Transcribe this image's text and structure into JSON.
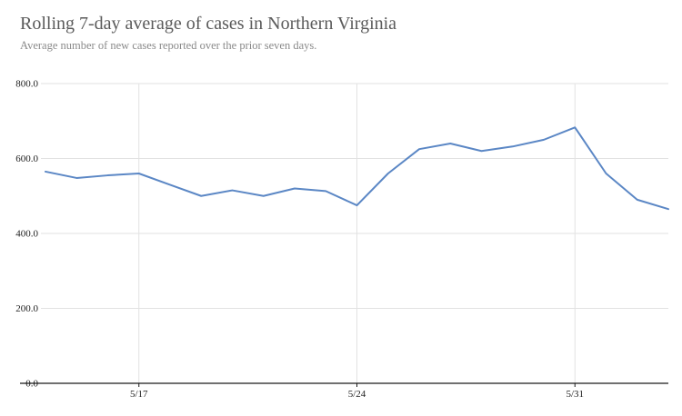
{
  "header": {
    "title": "Rolling 7-day average of cases in Northern Virginia",
    "subtitle": "Average number of new cases reported over the prior seven days."
  },
  "chart_data": {
    "type": "line",
    "title": "Rolling 7-day average of cases in Northern Virginia",
    "subtitle": "Average number of new cases reported over the prior seven days.",
    "x": [
      "5/14",
      "5/15",
      "5/16",
      "5/17",
      "5/18",
      "5/19",
      "5/20",
      "5/21",
      "5/22",
      "5/23",
      "5/24",
      "5/25",
      "5/26",
      "5/27",
      "5/28",
      "5/29",
      "5/30",
      "5/31",
      "6/1",
      "6/2",
      "6/3"
    ],
    "values": [
      565,
      548,
      555,
      560,
      530,
      500,
      515,
      500,
      520,
      513,
      475,
      560,
      625,
      640,
      620,
      632,
      650,
      683,
      560,
      490,
      465
    ],
    "xlabel": "",
    "ylabel": "",
    "ylim": [
      0,
      800
    ],
    "yticks": [
      0,
      200,
      400,
      600,
      800
    ],
    "ytick_labels": [
      "0.0",
      "200.0",
      "400.0",
      "600.0",
      "800.0"
    ],
    "xtick_labels": [
      "5/17",
      "5/24",
      "5/31"
    ],
    "xtick_indices": [
      3,
      10,
      17
    ],
    "grid": "horizontal gridlines at yticks, vertical gridlines at labeled dates",
    "legend_position": "none",
    "line_color": "#5b87c5",
    "grid_color": "#e2e2e2",
    "axis_color": "#1a1a1a",
    "title_color": "#5a5a5a",
    "subtitle_color": "#8a8a8a"
  }
}
